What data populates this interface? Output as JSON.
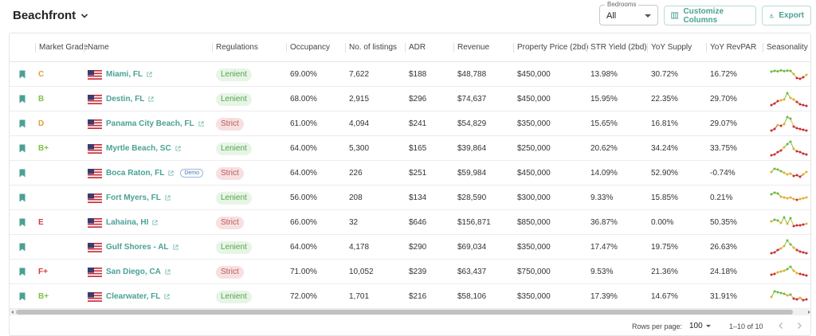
{
  "header": {
    "title": "Beachfront",
    "bedrooms_label": "Bedrooms",
    "bedrooms_value": "All",
    "customize_label": "Customize Columns",
    "export_label": "Export",
    "accent_color": "#4aa195"
  },
  "columns": [
    "Market Grade",
    "Name",
    "Regulations",
    "Occupancy",
    "No. of listings",
    "ADR",
    "Revenue",
    "Property Price (2bd)",
    "STR Yield (2bd)",
    "YoY Supply",
    "YoY RevPAR",
    "Seasonality"
  ],
  "rows": [
    {
      "grade": "C",
      "grade_color": "#e0a030",
      "name": "Miami, FL",
      "demo": "",
      "regulation": "Lenient",
      "occupancy": "69.00%",
      "listings": "7,622",
      "adr": "$188",
      "revenue": "$48,788",
      "price": "$450,000",
      "yield": "13.98%",
      "supply": "30.72%",
      "revpar": "16.72%",
      "seasonality": [
        0.7,
        0.75,
        0.72,
        0.78,
        0.74,
        0.76,
        0.75,
        0.55,
        0.3,
        0.25,
        0.35,
        0.5
      ]
    },
    {
      "grade": "B",
      "grade_color": "#7cc14a",
      "name": "Destin, FL",
      "demo": "",
      "regulation": "Lenient",
      "occupancy": "68.00%",
      "listings": "2,915",
      "adr": "$296",
      "revenue": "$74,637",
      "price": "$450,000",
      "yield": "15.95%",
      "supply": "22.35%",
      "revpar": "29.70%",
      "seasonality": [
        0.15,
        0.25,
        0.4,
        0.45,
        0.5,
        0.9,
        0.6,
        0.5,
        0.35,
        0.2,
        0.15,
        0.1
      ]
    },
    {
      "grade": "D",
      "grade_color": "#e0a030",
      "name": "Panama City Beach, FL",
      "demo": "",
      "regulation": "Strict",
      "occupancy": "61.00%",
      "listings": "4,094",
      "adr": "$241",
      "revenue": "$54,829",
      "price": "$350,000",
      "yield": "15.65%",
      "supply": "16.81%",
      "revpar": "29.07%",
      "seasonality": [
        0.1,
        0.2,
        0.45,
        0.4,
        0.5,
        0.95,
        0.85,
        0.35,
        0.25,
        0.2,
        0.15,
        0.1
      ]
    },
    {
      "grade": "B+",
      "grade_color": "#7cc14a",
      "name": "Myrtle Beach, SC",
      "demo": "",
      "regulation": "Lenient",
      "occupancy": "64.00%",
      "listings": "5,300",
      "adr": "$165",
      "revenue": "$39,864",
      "price": "$250,000",
      "yield": "20.62%",
      "supply": "34.24%",
      "revpar": "33.75%",
      "seasonality": [
        0.1,
        0.15,
        0.3,
        0.4,
        0.6,
        0.8,
        0.95,
        0.5,
        0.35,
        0.3,
        0.2,
        0.15
      ]
    },
    {
      "grade": "",
      "grade_color": "#333333",
      "name": "Boca Raton, FL",
      "demo": "Demo",
      "regulation": "Strict",
      "occupancy": "64.00%",
      "listings": "226",
      "adr": "$251",
      "revenue": "$59,984",
      "price": "$450,000",
      "yield": "14.09%",
      "supply": "52.90%",
      "revpar": "-0.74%",
      "seasonality": [
        0.6,
        0.8,
        0.75,
        0.65,
        0.55,
        0.45,
        0.5,
        0.35,
        0.4,
        0.3,
        0.45,
        0.6
      ]
    },
    {
      "grade": "",
      "grade_color": "#333333",
      "name": "Fort Myers, FL",
      "demo": "",
      "regulation": "Lenient",
      "occupancy": "56.00%",
      "listings": "208",
      "adr": "$134",
      "revenue": "$28,590",
      "price": "$300,000",
      "yield": "9.33%",
      "supply": "15.85%",
      "revpar": "0.21%",
      "seasonality": [
        0.75,
        0.85,
        0.8,
        0.6,
        0.55,
        0.5,
        0.55,
        0.45,
        0.4,
        0.45,
        0.5,
        0.55
      ]
    },
    {
      "grade": "E",
      "grade_color": "#d03c3c",
      "name": "Lahaina, HI",
      "demo": "",
      "regulation": "Strict",
      "occupancy": "66.00%",
      "listings": "32",
      "adr": "$646",
      "revenue": "$156,871",
      "price": "$850,000",
      "yield": "36.87%",
      "supply": "0.00%",
      "revpar": "50.35%",
      "seasonality": [
        0.6,
        0.7,
        0.65,
        0.5,
        0.85,
        0.45,
        0.8,
        0.3,
        0.35,
        0.35,
        0.4,
        0.45
      ]
    },
    {
      "grade": "",
      "grade_color": "#333333",
      "name": "Gulf Shores - AL",
      "demo": "",
      "regulation": "Lenient",
      "occupancy": "64.00%",
      "listings": "4,178",
      "adr": "$290",
      "revenue": "$69,034",
      "price": "$350,000",
      "yield": "17.47%",
      "supply": "19.75%",
      "revpar": "26.63%",
      "seasonality": [
        0.15,
        0.2,
        0.35,
        0.45,
        0.6,
        0.95,
        0.7,
        0.5,
        0.35,
        0.25,
        0.2,
        0.15
      ]
    },
    {
      "grade": "F+",
      "grade_color": "#d03c3c",
      "name": "San Diego, CA",
      "demo": "",
      "regulation": "Strict",
      "occupancy": "71.00%",
      "listings": "10,052",
      "adr": "$239",
      "revenue": "$63,437",
      "price": "$750,000",
      "yield": "9.53%",
      "supply": "21.36%",
      "revpar": "24.18%",
      "seasonality": [
        0.35,
        0.4,
        0.5,
        0.55,
        0.6,
        0.7,
        0.85,
        0.6,
        0.45,
        0.4,
        0.35,
        0.3
      ]
    },
    {
      "grade": "B+",
      "grade_color": "#7cc14a",
      "name": "Clearwater, FL",
      "demo": "",
      "regulation": "Lenient",
      "occupancy": "72.00%",
      "listings": "1,701",
      "adr": "$216",
      "revenue": "$58,106",
      "price": "$350,000",
      "yield": "17.39%",
      "supply": "14.67%",
      "revpar": "31.91%",
      "seasonality": [
        0.5,
        0.85,
        0.8,
        0.75,
        0.7,
        0.6,
        0.65,
        0.4,
        0.35,
        0.45,
        0.3,
        0.35
      ]
    }
  ],
  "footer": {
    "rows_per_page_label": "Rows per page:",
    "rows_per_page_value": "100",
    "range_label": "1–10 of 10"
  },
  "icons": {
    "bookmark": "bookmark-icon",
    "flag": "us-flag-icon",
    "external": "external-link-icon"
  }
}
